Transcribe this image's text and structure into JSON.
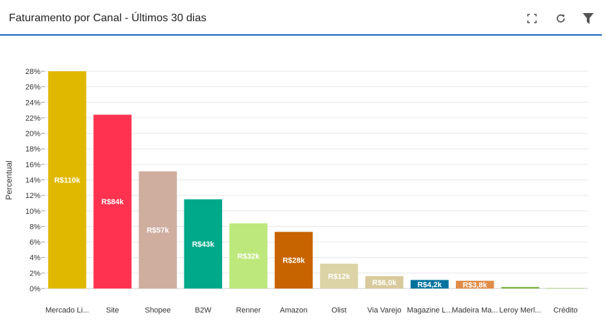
{
  "header": {
    "title": "Faturamento por Canal - Últimos 30 dias",
    "icons": [
      "fullscreen-icon",
      "refresh-icon",
      "filter-icon"
    ]
  },
  "colors": {
    "accent": "#1565c0"
  },
  "chart_data": {
    "type": "bar",
    "ylabel": "Percentual",
    "xlabel": "",
    "ylim": [
      0,
      28
    ],
    "yticks": [
      "0%",
      "2%",
      "4%",
      "6%",
      "8%",
      "10%",
      "12%",
      "14%",
      "16%",
      "18%",
      "20%",
      "22%",
      "24%",
      "26%",
      "28%"
    ],
    "grid": true,
    "categories": [
      "Mercado Li...",
      "Site",
      "Shopee",
      "B2W",
      "Renner",
      "Amazon",
      "Olist",
      "Via Varejo",
      "Magazine L...",
      "Madeira Ma...",
      "Leroy Merl...",
      "Crédito"
    ],
    "values": [
      28.0,
      22.4,
      15.1,
      11.5,
      8.4,
      7.3,
      3.2,
      1.6,
      1.1,
      1.0,
      0.2,
      0.05
    ],
    "labels": [
      "R$110k",
      "R$84k",
      "R$57k",
      "R$43k",
      "R$32k",
      "R$28k",
      "R$12k",
      "R$6,0k",
      "R$4,2k",
      "R$3,8k",
      "",
      ""
    ],
    "colors": [
      "#e0b800",
      "#ff334f",
      "#cfaea0",
      "#00a98a",
      "#bde87c",
      "#c86400",
      "#dcd3a6",
      "#d8ca9c",
      "#00729e",
      "#e08c48",
      "#7db346",
      "#b6de8a"
    ]
  }
}
